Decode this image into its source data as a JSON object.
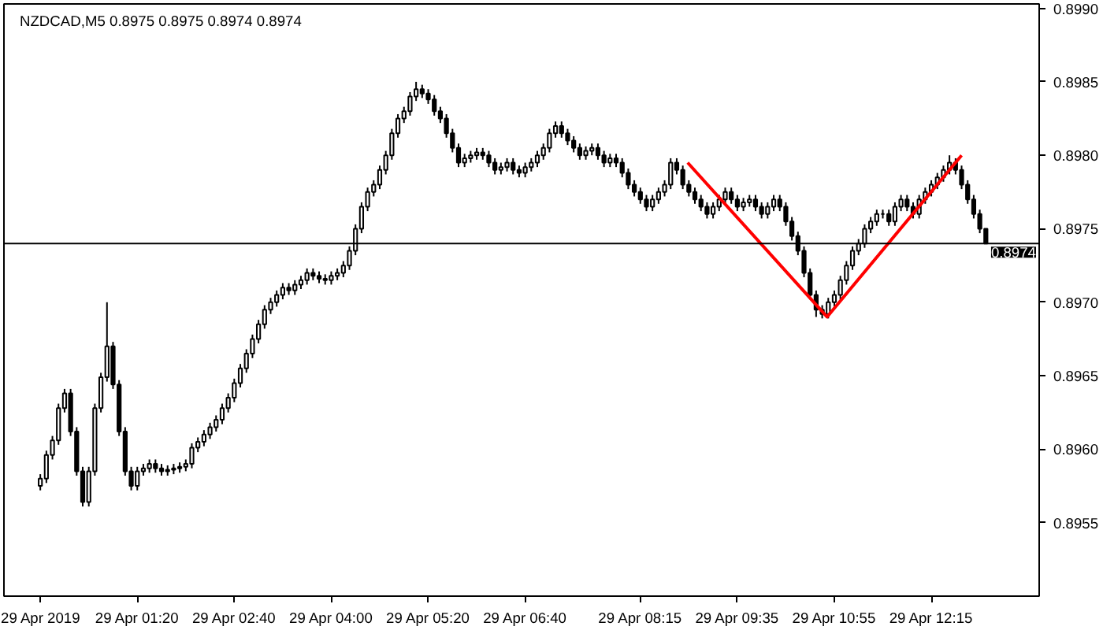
{
  "chart_data": {
    "type": "candlestick",
    "title": "NZDCAD,M5  0.8975 0.8975 0.8974 0.8974",
    "x": [
      "2019-04-29T00:00",
      "2019-04-29T00:05",
      "2019-04-29T00:10",
      "2019-04-29T00:15",
      "2019-04-29T00:20",
      "2019-04-29T00:25",
      "2019-04-29T00:30",
      "2019-04-29T00:35",
      "2019-04-29T00:40",
      "2019-04-29T00:45",
      "2019-04-29T00:50",
      "2019-04-29T00:55",
      "2019-04-29T01:00",
      "2019-04-29T01:05",
      "2019-04-29T01:10",
      "2019-04-29T01:15",
      "2019-04-29T01:20",
      "2019-04-29T01:25",
      "2019-04-29T01:30",
      "2019-04-29T01:35",
      "2019-04-29T01:40",
      "2019-04-29T01:45",
      "2019-04-29T01:50",
      "2019-04-29T01:55",
      "2019-04-29T02:00",
      "2019-04-29T02:05",
      "2019-04-29T02:10",
      "2019-04-29T02:15",
      "2019-04-29T02:20",
      "2019-04-29T02:25",
      "2019-04-29T02:30",
      "2019-04-29T02:35",
      "2019-04-29T02:40",
      "2019-04-29T02:45",
      "2019-04-29T02:50",
      "2019-04-29T02:55",
      "2019-04-29T03:00",
      "2019-04-29T03:05",
      "2019-04-29T03:10",
      "2019-04-29T03:15",
      "2019-04-29T03:20",
      "2019-04-29T03:25",
      "2019-04-29T03:30",
      "2019-04-29T03:35",
      "2019-04-29T03:40",
      "2019-04-29T03:45",
      "2019-04-29T03:50",
      "2019-04-29T03:55",
      "2019-04-29T04:00",
      "2019-04-29T04:05",
      "2019-04-29T04:10",
      "2019-04-29T04:15",
      "2019-04-29T04:20",
      "2019-04-29T04:25",
      "2019-04-29T04:30",
      "2019-04-29T04:35",
      "2019-04-29T04:40",
      "2019-04-29T04:45",
      "2019-04-29T04:50",
      "2019-04-29T04:55",
      "2019-04-29T05:00",
      "2019-04-29T05:05",
      "2019-04-29T05:10",
      "2019-04-29T05:15",
      "2019-04-29T05:20",
      "2019-04-29T05:25",
      "2019-04-29T05:30",
      "2019-04-29T05:35",
      "2019-04-29T05:40",
      "2019-04-29T05:45",
      "2019-04-29T05:50",
      "2019-04-29T05:55",
      "2019-04-29T06:00",
      "2019-04-29T06:05",
      "2019-04-29T06:10",
      "2019-04-29T06:15",
      "2019-04-29T06:20",
      "2019-04-29T06:25",
      "2019-04-29T06:30",
      "2019-04-29T06:35",
      "2019-04-29T06:40",
      "2019-04-29T06:45",
      "2019-04-29T06:50",
      "2019-04-29T06:55",
      "2019-04-29T07:00",
      "2019-04-29T07:05",
      "2019-04-29T07:10",
      "2019-04-29T07:15",
      "2019-04-29T07:20",
      "2019-04-29T07:25",
      "2019-04-29T07:30",
      "2019-04-29T07:35",
      "2019-04-29T07:40",
      "2019-04-29T07:45",
      "2019-04-29T07:50",
      "2019-04-29T07:55",
      "2019-04-29T08:00",
      "2019-04-29T08:05",
      "2019-04-29T08:10",
      "2019-04-29T08:15",
      "2019-04-29T08:20",
      "2019-04-29T08:25",
      "2019-04-29T08:30",
      "2019-04-29T08:35",
      "2019-04-29T08:40",
      "2019-04-29T08:45",
      "2019-04-29T08:50",
      "2019-04-29T08:55",
      "2019-04-29T09:00",
      "2019-04-29T09:05",
      "2019-04-29T09:10",
      "2019-04-29T09:15",
      "2019-04-29T09:20",
      "2019-04-29T09:25",
      "2019-04-29T09:30",
      "2019-04-29T09:35",
      "2019-04-29T09:40",
      "2019-04-29T09:45",
      "2019-04-29T09:50",
      "2019-04-29T09:55",
      "2019-04-29T10:00",
      "2019-04-29T10:05",
      "2019-04-29T10:10",
      "2019-04-29T10:15",
      "2019-04-29T10:20",
      "2019-04-29T10:25",
      "2019-04-29T10:30",
      "2019-04-29T10:35",
      "2019-04-29T10:40",
      "2019-04-29T10:45",
      "2019-04-29T10:50",
      "2019-04-29T10:55",
      "2019-04-29T11:00",
      "2019-04-29T11:05",
      "2019-04-29T11:10",
      "2019-04-29T11:15",
      "2019-04-29T11:20",
      "2019-04-29T11:25",
      "2019-04-29T11:30",
      "2019-04-29T11:35",
      "2019-04-29T11:40",
      "2019-04-29T11:45",
      "2019-04-29T11:50",
      "2019-04-29T11:55",
      "2019-04-29T12:00",
      "2019-04-29T12:05",
      "2019-04-29T12:10",
      "2019-04-29T12:15",
      "2019-04-29T12:20",
      "2019-04-29T12:25",
      "2019-04-29T12:30",
      "2019-04-29T12:35",
      "2019-04-29T12:40",
      "2019-04-29T12:45",
      "2019-04-29T12:50",
      "2019-04-29T12:55",
      "2019-04-29T13:00"
    ],
    "ohlc": [
      [
        0.89575,
        0.89583,
        0.89572,
        0.8958
      ],
      [
        0.8958,
        0.89599,
        0.89577,
        0.89596
      ],
      [
        0.89596,
        0.89609,
        0.89593,
        0.89606
      ],
      [
        0.89606,
        0.89631,
        0.89603,
        0.89628
      ],
      [
        0.89628,
        0.89641,
        0.89625,
        0.89638
      ],
      [
        0.89638,
        0.89641,
        0.89609,
        0.89612
      ],
      [
        0.89612,
        0.89615,
        0.89582,
        0.89585
      ],
      [
        0.89585,
        0.89588,
        0.89561,
        0.89564
      ],
      [
        0.89564,
        0.89588,
        0.89561,
        0.89585
      ],
      [
        0.89585,
        0.89631,
        0.89582,
        0.89628
      ],
      [
        0.89628,
        0.89652,
        0.89625,
        0.89649
      ],
      [
        0.89649,
        0.897,
        0.89646,
        0.8967
      ],
      [
        0.8967,
        0.89673,
        0.89641,
        0.89644
      ],
      [
        0.89644,
        0.89647,
        0.89609,
        0.89612
      ],
      [
        0.89612,
        0.89615,
        0.89582,
        0.89585
      ],
      [
        0.89585,
        0.89588,
        0.89572,
        0.89575
      ],
      [
        0.89575,
        0.89588,
        0.89572,
        0.89585
      ],
      [
        0.89585,
        0.8959,
        0.89582,
        0.89587
      ],
      [
        0.89587,
        0.89593,
        0.89584,
        0.8959
      ],
      [
        0.8959,
        0.89593,
        0.89584,
        0.89587
      ],
      [
        0.89587,
        0.8959,
        0.89582,
        0.89585
      ],
      [
        0.89585,
        0.89589,
        0.89582,
        0.89586
      ],
      [
        0.89586,
        0.8959,
        0.89583,
        0.89587
      ],
      [
        0.89587,
        0.89591,
        0.89584,
        0.89588
      ],
      [
        0.89588,
        0.89593,
        0.89585,
        0.8959
      ],
      [
        0.8959,
        0.89604,
        0.89587,
        0.89601
      ],
      [
        0.89601,
        0.89608,
        0.89598,
        0.89605
      ],
      [
        0.89605,
        0.89613,
        0.89602,
        0.8961
      ],
      [
        0.8961,
        0.89618,
        0.89607,
        0.89615
      ],
      [
        0.89615,
        0.89623,
        0.89612,
        0.8962
      ],
      [
        0.8962,
        0.89631,
        0.89617,
        0.89628
      ],
      [
        0.89628,
        0.89638,
        0.89625,
        0.89635
      ],
      [
        0.89635,
        0.89648,
        0.89632,
        0.89645
      ],
      [
        0.89645,
        0.89658,
        0.89642,
        0.89655
      ],
      [
        0.89655,
        0.89668,
        0.89652,
        0.89665
      ],
      [
        0.89665,
        0.89678,
        0.89662,
        0.89675
      ],
      [
        0.89675,
        0.89688,
        0.89672,
        0.89685
      ],
      [
        0.89685,
        0.89698,
        0.89682,
        0.89695
      ],
      [
        0.89695,
        0.89703,
        0.89692,
        0.897
      ],
      [
        0.897,
        0.89708,
        0.89697,
        0.89705
      ],
      [
        0.89705,
        0.89713,
        0.89702,
        0.8971
      ],
      [
        0.8971,
        0.89713,
        0.89705,
        0.89708
      ],
      [
        0.89708,
        0.89715,
        0.89705,
        0.89712
      ],
      [
        0.89712,
        0.89718,
        0.89709,
        0.89715
      ],
      [
        0.89715,
        0.89723,
        0.89712,
        0.8972
      ],
      [
        0.8972,
        0.89723,
        0.89715,
        0.89718
      ],
      [
        0.89718,
        0.89721,
        0.89713,
        0.89716
      ],
      [
        0.89716,
        0.89719,
        0.89712,
        0.89715
      ],
      [
        0.89715,
        0.89721,
        0.89712,
        0.89718
      ],
      [
        0.89718,
        0.89723,
        0.89715,
        0.8972
      ],
      [
        0.8972,
        0.89728,
        0.89717,
        0.89725
      ],
      [
        0.89725,
        0.89738,
        0.89722,
        0.89735
      ],
      [
        0.89735,
        0.89753,
        0.89732,
        0.8975
      ],
      [
        0.8975,
        0.89768,
        0.89747,
        0.89765
      ],
      [
        0.89765,
        0.89778,
        0.89762,
        0.89775
      ],
      [
        0.89775,
        0.89783,
        0.89772,
        0.8978
      ],
      [
        0.8978,
        0.89793,
        0.89777,
        0.8979
      ],
      [
        0.8979,
        0.89803,
        0.89787,
        0.898
      ],
      [
        0.898,
        0.89818,
        0.89797,
        0.89815
      ],
      [
        0.89815,
        0.89828,
        0.89812,
        0.89825
      ],
      [
        0.89825,
        0.89833,
        0.89822,
        0.8983
      ],
      [
        0.8983,
        0.89843,
        0.89827,
        0.8984
      ],
      [
        0.8984,
        0.8985,
        0.89837,
        0.89845
      ],
      [
        0.89845,
        0.89848,
        0.89839,
        0.89842
      ],
      [
        0.89842,
        0.89845,
        0.89835,
        0.89838
      ],
      [
        0.89838,
        0.89841,
        0.89827,
        0.8983
      ],
      [
        0.8983,
        0.89833,
        0.89822,
        0.89825
      ],
      [
        0.89825,
        0.89828,
        0.89812,
        0.89815
      ],
      [
        0.89815,
        0.89818,
        0.89802,
        0.89805
      ],
      [
        0.89805,
        0.89808,
        0.89792,
        0.89795
      ],
      [
        0.89795,
        0.89801,
        0.89792,
        0.89798
      ],
      [
        0.89798,
        0.89803,
        0.89795,
        0.898
      ],
      [
        0.898,
        0.89805,
        0.89797,
        0.89802
      ],
      [
        0.89802,
        0.89805,
        0.89797,
        0.898
      ],
      [
        0.898,
        0.89803,
        0.89792,
        0.89795
      ],
      [
        0.89795,
        0.89798,
        0.89787,
        0.8979
      ],
      [
        0.8979,
        0.89795,
        0.89787,
        0.89792
      ],
      [
        0.89792,
        0.89798,
        0.89789,
        0.89795
      ],
      [
        0.89795,
        0.89798,
        0.89787,
        0.8979
      ],
      [
        0.8979,
        0.89793,
        0.89785,
        0.89788
      ],
      [
        0.89788,
        0.89795,
        0.89785,
        0.89792
      ],
      [
        0.89792,
        0.89798,
        0.89789,
        0.89795
      ],
      [
        0.89795,
        0.89803,
        0.89792,
        0.898
      ],
      [
        0.898,
        0.89808,
        0.89797,
        0.89805
      ],
      [
        0.89805,
        0.89818,
        0.89802,
        0.89815
      ],
      [
        0.89815,
        0.89823,
        0.89812,
        0.8982
      ],
      [
        0.8982,
        0.89823,
        0.89812,
        0.89815
      ],
      [
        0.89815,
        0.89818,
        0.89807,
        0.8981
      ],
      [
        0.8981,
        0.89813,
        0.89802,
        0.89805
      ],
      [
        0.89805,
        0.89808,
        0.89797,
        0.898
      ],
      [
        0.898,
        0.89806,
        0.89797,
        0.89803
      ],
      [
        0.89803,
        0.89808,
        0.898,
        0.89805
      ],
      [
        0.89805,
        0.89808,
        0.89797,
        0.898
      ],
      [
        0.898,
        0.89803,
        0.89792,
        0.89795
      ],
      [
        0.89795,
        0.89801,
        0.89792,
        0.89798
      ],
      [
        0.89798,
        0.89801,
        0.89792,
        0.89795
      ],
      [
        0.89795,
        0.89798,
        0.89785,
        0.89788
      ],
      [
        0.89788,
        0.89791,
        0.89777,
        0.8978
      ],
      [
        0.8978,
        0.89783,
        0.89772,
        0.89775
      ],
      [
        0.89775,
        0.89778,
        0.89767,
        0.8977
      ],
      [
        0.8977,
        0.89773,
        0.89762,
        0.89765
      ],
      [
        0.89765,
        0.89773,
        0.89762,
        0.8977
      ],
      [
        0.8977,
        0.89778,
        0.89767,
        0.89775
      ],
      [
        0.89775,
        0.89783,
        0.89772,
        0.8978
      ],
      [
        0.8978,
        0.89798,
        0.89777,
        0.89795
      ],
      [
        0.89795,
        0.89798,
        0.89787,
        0.8979
      ],
      [
        0.8979,
        0.89793,
        0.89777,
        0.8978
      ],
      [
        0.8978,
        0.89783,
        0.89772,
        0.89775
      ],
      [
        0.89775,
        0.89778,
        0.89767,
        0.8977
      ],
      [
        0.8977,
        0.89773,
        0.89762,
        0.89765
      ],
      [
        0.89765,
        0.89768,
        0.89757,
        0.8976
      ],
      [
        0.8976,
        0.89768,
        0.89757,
        0.89765
      ],
      [
        0.89765,
        0.89773,
        0.89762,
        0.8977
      ],
      [
        0.8977,
        0.89778,
        0.89767,
        0.89775
      ],
      [
        0.89775,
        0.89778,
        0.89767,
        0.8977
      ],
      [
        0.8977,
        0.89773,
        0.89762,
        0.89765
      ],
      [
        0.89765,
        0.89771,
        0.89762,
        0.89768
      ],
      [
        0.89768,
        0.89773,
        0.89765,
        0.8977
      ],
      [
        0.8977,
        0.89773,
        0.89762,
        0.89765
      ],
      [
        0.89765,
        0.89768,
        0.89757,
        0.8976
      ],
      [
        0.8976,
        0.89768,
        0.89757,
        0.89765
      ],
      [
        0.89765,
        0.89773,
        0.89762,
        0.8977
      ],
      [
        0.8977,
        0.89773,
        0.89762,
        0.89765
      ],
      [
        0.89765,
        0.89768,
        0.89752,
        0.89755
      ],
      [
        0.89755,
        0.89758,
        0.89742,
        0.89745
      ],
      [
        0.89745,
        0.89748,
        0.89732,
        0.89735
      ],
      [
        0.89735,
        0.89738,
        0.89717,
        0.8972
      ],
      [
        0.8972,
        0.89723,
        0.89702,
        0.89705
      ],
      [
        0.89705,
        0.89708,
        0.8969,
        0.89695
      ],
      [
        0.89695,
        0.89698,
        0.89689,
        0.89692
      ],
      [
        0.89692,
        0.89703,
        0.89689,
        0.897
      ],
      [
        0.897,
        0.89708,
        0.89697,
        0.89705
      ],
      [
        0.89705,
        0.89718,
        0.89702,
        0.89715
      ],
      [
        0.89715,
        0.89728,
        0.89712,
        0.89725
      ],
      [
        0.89725,
        0.89738,
        0.89722,
        0.89735
      ],
      [
        0.89735,
        0.89743,
        0.89732,
        0.8974
      ],
      [
        0.8974,
        0.89753,
        0.89737,
        0.8975
      ],
      [
        0.8975,
        0.89758,
        0.89747,
        0.89755
      ],
      [
        0.89755,
        0.89763,
        0.89752,
        0.8976
      ],
      [
        0.8976,
        0.89763,
        0.89757,
        0.8976
      ],
      [
        0.8976,
        0.89763,
        0.89752,
        0.89755
      ],
      [
        0.89755,
        0.89768,
        0.89752,
        0.89765
      ],
      [
        0.89765,
        0.89773,
        0.89762,
        0.8977
      ],
      [
        0.8977,
        0.89773,
        0.89762,
        0.89765
      ],
      [
        0.89765,
        0.89768,
        0.89757,
        0.8976
      ],
      [
        0.8976,
        0.89773,
        0.89757,
        0.8977
      ],
      [
        0.8977,
        0.89778,
        0.89767,
        0.89775
      ],
      [
        0.89775,
        0.89783,
        0.89772,
        0.8978
      ],
      [
        0.8978,
        0.89788,
        0.89777,
        0.89785
      ],
      [
        0.89785,
        0.89793,
        0.89782,
        0.8979
      ],
      [
        0.8979,
        0.898,
        0.89787,
        0.89795
      ],
      [
        0.89795,
        0.89798,
        0.89787,
        0.8979
      ],
      [
        0.8979,
        0.89793,
        0.89777,
        0.8978
      ],
      [
        0.8978,
        0.89783,
        0.89767,
        0.8977
      ],
      [
        0.8977,
        0.89773,
        0.89757,
        0.8976
      ],
      [
        0.8976,
        0.89763,
        0.89747,
        0.8975
      ],
      [
        0.8975,
        0.8975,
        0.8974,
        0.8974
      ]
    ],
    "series": [
      {
        "type": "line",
        "color": "#ff0000",
        "x": [
          "2019-04-29T08:54",
          "2019-04-29T10:49",
          "2019-04-29T12:40"
        ],
        "values": [
          0.89795,
          0.8969,
          0.898
        ]
      }
    ],
    "xlim": [
      "2019-04-28T23:30",
      "2019-04-29T13:44"
    ],
    "xticks": [
      {
        "value": "2019-04-29T00:00",
        "label": "29 Apr 2019"
      },
      {
        "value": "2019-04-29T01:20",
        "label": "29 Apr 01:20"
      },
      {
        "value": "2019-04-29T02:40",
        "label": "29 Apr 02:40"
      },
      {
        "value": "2019-04-29T04:00",
        "label": "29 Apr 04:00"
      },
      {
        "value": "2019-04-29T05:20",
        "label": "29 Apr 05:20"
      },
      {
        "value": "2019-04-29T06:40",
        "label": "29 Apr 06:40"
      },
      {
        "value": "2019-04-29T08:15",
        "label": "29 Apr 08:15"
      },
      {
        "value": "2019-04-29T09:35",
        "label": "29 Apr 09:35"
      },
      {
        "value": "2019-04-29T10:55",
        "label": "29 Apr 10:55"
      },
      {
        "value": "2019-04-29T12:15",
        "label": "29 Apr 12:15"
      }
    ],
    "ylim": [
      0.895,
      0.89903
    ],
    "yticks": [
      {
        "value": 0.8955,
        "label": "0.8955"
      },
      {
        "value": 0.896,
        "label": "0.8960"
      },
      {
        "value": 0.8965,
        "label": "0.8965"
      },
      {
        "value": 0.897,
        "label": "0.8970"
      },
      {
        "value": 0.8975,
        "label": "0.8975"
      },
      {
        "value": 0.898,
        "label": "0.8980"
      },
      {
        "value": 0.8985,
        "label": "0.8985"
      },
      {
        "value": 0.899,
        "label": "0.8990"
      }
    ],
    "ref_lines": [
      {
        "axis": "y",
        "value": 0.8974,
        "label": "0.8974",
        "color": "#000000"
      }
    ],
    "grid": false
  }
}
